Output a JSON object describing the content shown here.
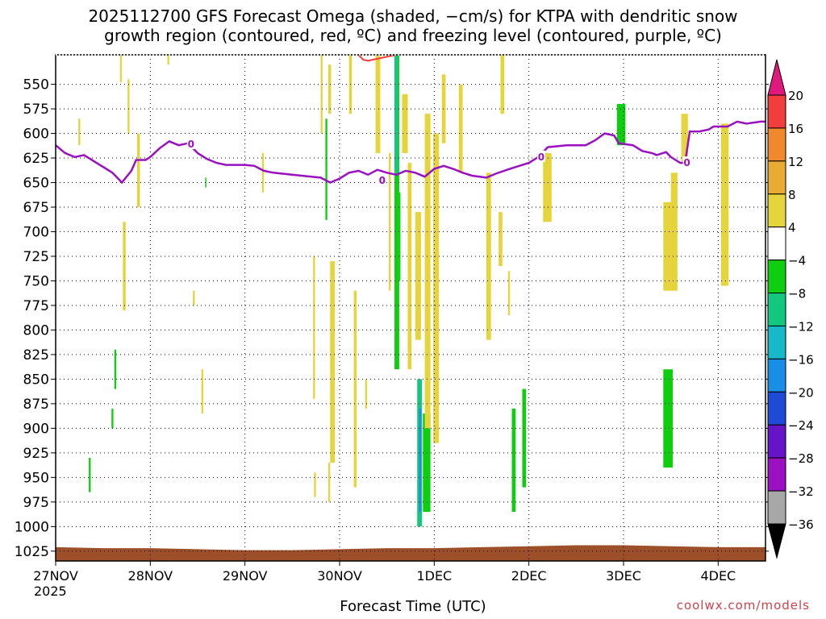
{
  "title_line1": "2025112700 GFS Forecast Omega (shaded, −cm/s) for KTPA with dendritic snow",
  "title_line2": "growth region (contoured, red, ºC) and freezing level (contoured, purple, ºC)",
  "credit": "coolwx.com/models",
  "chart_data": {
    "type": "heatmap",
    "xlabel": "Forecast Time (UTC)",
    "ylabel": "",
    "x_ticks": [
      "27NOV",
      "28NOV",
      "29NOV",
      "30NOV",
      "1DEC",
      "2DEC",
      "3DEC",
      "4DEC"
    ],
    "x_start_year_label": "2025",
    "x_range_days": [
      0,
      7.5
    ],
    "y_ticks": [
      550,
      575,
      600,
      625,
      650,
      675,
      700,
      725,
      750,
      775,
      800,
      825,
      850,
      875,
      900,
      925,
      950,
      975,
      1000,
      1025
    ],
    "y_range_hpa": [
      520,
      1035
    ],
    "grid": true,
    "colorbar": {
      "labels": [
        "20",
        "16",
        "12",
        "8",
        "4",
        "−4",
        "−8",
        "−12",
        "−16",
        "−20",
        "−24",
        "−28",
        "−32",
        "−36"
      ],
      "colors": [
        "#e2197c",
        "#f23d3d",
        "#f0882d",
        "#e8ab33",
        "#e6d43c",
        "#ffffff",
        "#0fce0f",
        "#14c77e",
        "#17b9c9",
        "#1a8ee6",
        "#1f4ad6",
        "#6514c7",
        "#9a10c2",
        "#a8a8a8",
        "#000000"
      ]
    },
    "freezing_level_label": "0",
    "freezing_level_series": [
      [
        0.0,
        612
      ],
      [
        0.1,
        620
      ],
      [
        0.2,
        624
      ],
      [
        0.3,
        622
      ],
      [
        0.4,
        628
      ],
      [
        0.5,
        634
      ],
      [
        0.6,
        640
      ],
      [
        0.65,
        645
      ],
      [
        0.7,
        650
      ],
      [
        0.8,
        638
      ],
      [
        0.85,
        627
      ],
      [
        0.95,
        627
      ],
      [
        1.0,
        624
      ],
      [
        1.1,
        615
      ],
      [
        1.2,
        608
      ],
      [
        1.3,
        612
      ],
      [
        1.4,
        610
      ],
      [
        1.5,
        620
      ],
      [
        1.6,
        626
      ],
      [
        1.7,
        630
      ],
      [
        1.8,
        632
      ],
      [
        2.0,
        632
      ],
      [
        2.1,
        633
      ],
      [
        2.2,
        638
      ],
      [
        2.3,
        640
      ],
      [
        2.5,
        642
      ],
      [
        2.6,
        643
      ],
      [
        2.8,
        645
      ],
      [
        2.9,
        650
      ],
      [
        3.0,
        646
      ],
      [
        3.1,
        640
      ],
      [
        3.2,
        638
      ],
      [
        3.3,
        642
      ],
      [
        3.4,
        637
      ],
      [
        3.5,
        640
      ],
      [
        3.6,
        642
      ],
      [
        3.7,
        638
      ],
      [
        3.8,
        640
      ],
      [
        3.9,
        644
      ],
      [
        4.0,
        636
      ],
      [
        4.1,
        633
      ],
      [
        4.2,
        636
      ],
      [
        4.3,
        640
      ],
      [
        4.4,
        643
      ],
      [
        4.55,
        645
      ],
      [
        4.65,
        641
      ],
      [
        4.8,
        636
      ],
      [
        5.0,
        630
      ],
      [
        5.1,
        624
      ],
      [
        5.2,
        614
      ],
      [
        5.4,
        612
      ],
      [
        5.6,
        612
      ],
      [
        5.7,
        607
      ],
      [
        5.8,
        600
      ],
      [
        5.9,
        602
      ],
      [
        5.95,
        610
      ],
      [
        6.1,
        612
      ],
      [
        6.2,
        618
      ],
      [
        6.3,
        620
      ],
      [
        6.35,
        622
      ],
      [
        6.45,
        619
      ],
      [
        6.5,
        624
      ],
      [
        6.55,
        627
      ],
      [
        6.6,
        630
      ],
      [
        6.65,
        630
      ],
      [
        6.7,
        598
      ],
      [
        6.8,
        598
      ],
      [
        6.9,
        596
      ],
      [
        6.95,
        593
      ],
      [
        7.1,
        593
      ],
      [
        7.2,
        588
      ],
      [
        7.3,
        590
      ],
      [
        7.45,
        588
      ],
      [
        7.5,
        588
      ]
    ],
    "dgz_series": [
      [
        3.2,
        520
      ],
      [
        3.25,
        525
      ],
      [
        3.3,
        526
      ],
      [
        3.4,
        524
      ],
      [
        3.5,
        522
      ],
      [
        3.6,
        520
      ]
    ],
    "omega_regions": [
      {
        "x": [
          0.24,
          0.26
        ],
        "p": [
          585,
          612
        ],
        "class": "4"
      },
      {
        "x": [
          0.68,
          0.7
        ],
        "p": [
          520,
          548
        ],
        "class": "4"
      },
      {
        "x": [
          0.76,
          0.78
        ],
        "p": [
          545,
          600
        ],
        "class": "4"
      },
      {
        "x": [
          0.86,
          0.89
        ],
        "p": [
          600,
          675
        ],
        "class": "4"
      },
      {
        "x": [
          0.71,
          0.74
        ],
        "p": [
          690,
          780
        ],
        "class": "4"
      },
      {
        "x": [
          0.62,
          0.64
        ],
        "p": [
          820,
          860
        ],
        "class": "-4"
      },
      {
        "x": [
          0.59,
          0.61
        ],
        "p": [
          880,
          900
        ],
        "class": "-4"
      },
      {
        "x": [
          0.35,
          0.37
        ],
        "p": [
          930,
          965
        ],
        "class": "-4"
      },
      {
        "x": [
          1.18,
          1.2
        ],
        "p": [
          520,
          530
        ],
        "class": "4"
      },
      {
        "x": [
          1.54,
          1.56
        ],
        "p": [
          840,
          885
        ],
        "class": "4"
      },
      {
        "x": [
          1.45,
          1.47
        ],
        "p": [
          760,
          775
        ],
        "class": "4"
      },
      {
        "x": [
          1.58,
          1.59
        ],
        "p": [
          645,
          655
        ],
        "class": "-4"
      },
      {
        "x": [
          2.18,
          2.2
        ],
        "p": [
          620,
          660
        ],
        "class": "4"
      },
      {
        "x": [
          2.72,
          2.74
        ],
        "p": [
          725,
          870
        ],
        "class": "4"
      },
      {
        "x": [
          2.73,
          2.75
        ],
        "p": [
          945,
          970
        ],
        "class": "4"
      },
      {
        "x": [
          2.8,
          2.82
        ],
        "p": [
          520,
          600
        ],
        "class": "4"
      },
      {
        "x": [
          2.9,
          2.95
        ],
        "p": [
          730,
          935
        ],
        "class": "4"
      },
      {
        "x": [
          2.88,
          2.91
        ],
        "p": [
          530,
          580
        ],
        "class": "4"
      },
      {
        "x": [
          2.88,
          2.9
        ],
        "p": [
          935,
          975
        ],
        "class": "4"
      },
      {
        "x": [
          2.85,
          2.87
        ],
        "p": [
          585,
          688
        ],
        "class": "-4"
      },
      {
        "x": [
          3.1,
          3.13
        ],
        "p": [
          520,
          580
        ],
        "class": "4"
      },
      {
        "x": [
          3.15,
          3.18
        ],
        "p": [
          760,
          960
        ],
        "class": "4"
      },
      {
        "x": [
          3.27,
          3.29
        ],
        "p": [
          850,
          880
        ],
        "class": "4"
      },
      {
        "x": [
          3.38,
          3.43
        ],
        "p": [
          520,
          620
        ],
        "class": "4"
      },
      {
        "x": [
          3.52,
          3.54
        ],
        "p": [
          620,
          760
        ],
        "class": "4"
      },
      {
        "x": [
          3.58,
          3.63
        ],
        "p": [
          520,
          840
        ],
        "class": "-4"
      },
      {
        "x": [
          3.58,
          3.62
        ],
        "p": [
          520,
          640
        ],
        "class": "-8"
      },
      {
        "x": [
          3.63,
          3.64
        ],
        "p": [
          660,
          750
        ],
        "class": "-4"
      },
      {
        "x": [
          3.66,
          3.72
        ],
        "p": [
          560,
          620
        ],
        "class": "4"
      },
      {
        "x": [
          3.72,
          3.76
        ],
        "p": [
          630,
          840
        ],
        "class": "4"
      },
      {
        "x": [
          3.8,
          3.86
        ],
        "p": [
          680,
          810
        ],
        "class": "4"
      },
      {
        "x": [
          3.82,
          3.87
        ],
        "p": [
          850,
          1000
        ],
        "class": "-8"
      },
      {
        "x": [
          3.84,
          3.86
        ],
        "p": [
          880,
          985
        ],
        "class": "-16"
      },
      {
        "x": [
          3.88,
          3.96
        ],
        "p": [
          885,
          985
        ],
        "class": "-4"
      },
      {
        "x": [
          3.9,
          3.96
        ],
        "p": [
          580,
          900
        ],
        "class": "4"
      },
      {
        "x": [
          3.99,
          4.05
        ],
        "p": [
          600,
          915
        ],
        "class": "4"
      },
      {
        "x": [
          4.08,
          4.12
        ],
        "p": [
          540,
          610
        ],
        "class": "4"
      },
      {
        "x": [
          4.26,
          4.3
        ],
        "p": [
          550,
          640
        ],
        "class": "4"
      },
      {
        "x": [
          4.55,
          4.6
        ],
        "p": [
          640,
          810
        ],
        "class": "4"
      },
      {
        "x": [
          4.68,
          4.72
        ],
        "p": [
          680,
          735
        ],
        "class": "4"
      },
      {
        "x": [
          4.7,
          4.74
        ],
        "p": [
          520,
          580
        ],
        "class": "4"
      },
      {
        "x": [
          4.78,
          4.8
        ],
        "p": [
          740,
          785
        ],
        "class": "4"
      },
      {
        "x": [
          4.82,
          4.86
        ],
        "p": [
          880,
          985
        ],
        "class": "-4"
      },
      {
        "x": [
          4.93,
          4.97
        ],
        "p": [
          860,
          960
        ],
        "class": "-4"
      },
      {
        "x": [
          5.15,
          5.24
        ],
        "p": [
          620,
          690
        ],
        "class": "4"
      },
      {
        "x": [
          5.93,
          6.02
        ],
        "p": [
          570,
          612
        ],
        "class": "-4"
      },
      {
        "x": [
          6.42,
          6.52
        ],
        "p": [
          670,
          760
        ],
        "class": "4"
      },
      {
        "x": [
          6.42,
          6.52
        ],
        "p": [
          840,
          940
        ],
        "class": "-4"
      },
      {
        "x": [
          6.5,
          6.57
        ],
        "p": [
          640,
          760
        ],
        "class": "4"
      },
      {
        "x": [
          6.61,
          6.68
        ],
        "p": [
          580,
          630
        ],
        "class": "4"
      },
      {
        "x": [
          7.03,
          7.11
        ],
        "p": [
          590,
          755
        ],
        "class": "4"
      }
    ]
  }
}
